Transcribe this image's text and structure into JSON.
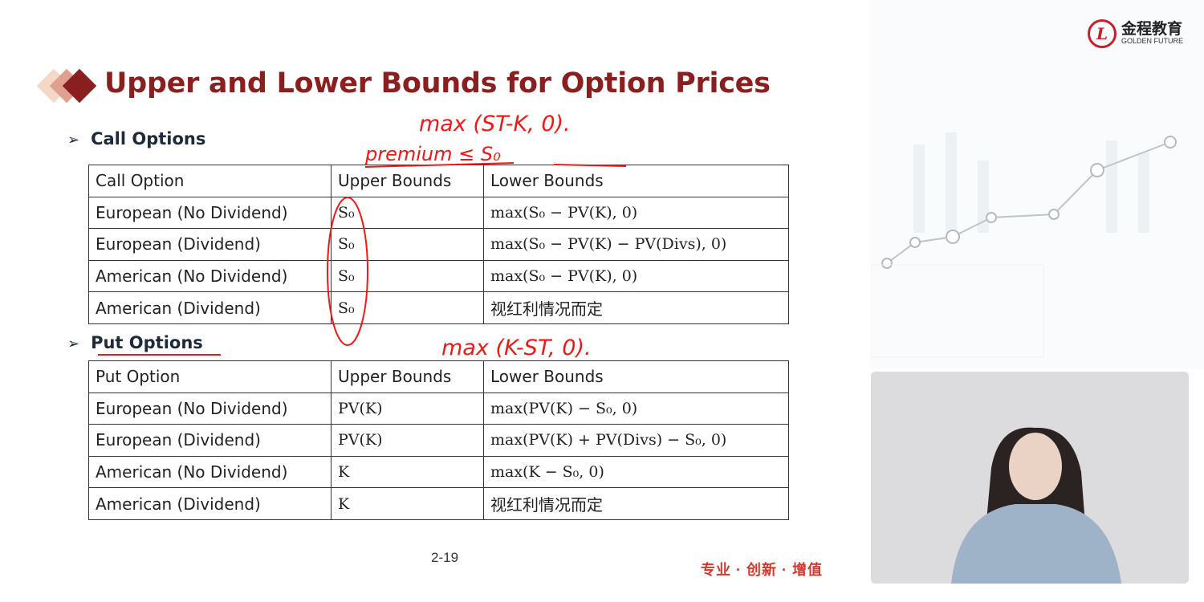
{
  "title": "Upper and Lower Bounds for Option Prices",
  "sections": {
    "call": "Call Options",
    "put": "Put Options"
  },
  "call_table": {
    "headers": [
      "Call Option",
      "Upper Bounds",
      "Lower Bounds"
    ],
    "rows": [
      [
        "European (No Dividend)",
        "S₀",
        "max(S₀ − PV(K), 0)"
      ],
      [
        "European (Dividend)",
        "S₀",
        "max(S₀ − PV(K) − PV(Divs), 0)"
      ],
      [
        "American (No Dividend)",
        "S₀",
        "max(S₀ − PV(K), 0)"
      ],
      [
        "American (Dividend)",
        "S₀",
        "视红利情况而定"
      ]
    ]
  },
  "put_table": {
    "headers": [
      "Put Option",
      "Upper Bounds",
      "Lower Bounds"
    ],
    "rows": [
      [
        "European (No Dividend)",
        "PV(K)",
        "max(PV(K) − S₀, 0)"
      ],
      [
        "European (Dividend)",
        "PV(K)",
        "max(PV(K) + PV(Divs) − S₀, 0)"
      ],
      [
        "American (No Dividend)",
        "K",
        "max(K − S₀, 0)"
      ],
      [
        "American (Dividend)",
        "K",
        "视红利情况而定"
      ]
    ]
  },
  "annotations": {
    "call_payoff": "max (ST-K, 0).",
    "premium": "premium ≤ S₀",
    "put_payoff": "max (K-ST, 0)."
  },
  "page_number": "2-19",
  "slogan": "专业 · 创新 · 增值",
  "logo": {
    "cn": "金程教育",
    "en": "GOLDEN FUTURE",
    "mark": "L"
  },
  "colors": {
    "title": "#8a1f1f",
    "annotation": "#f01818",
    "slogan": "#d03a2a"
  }
}
